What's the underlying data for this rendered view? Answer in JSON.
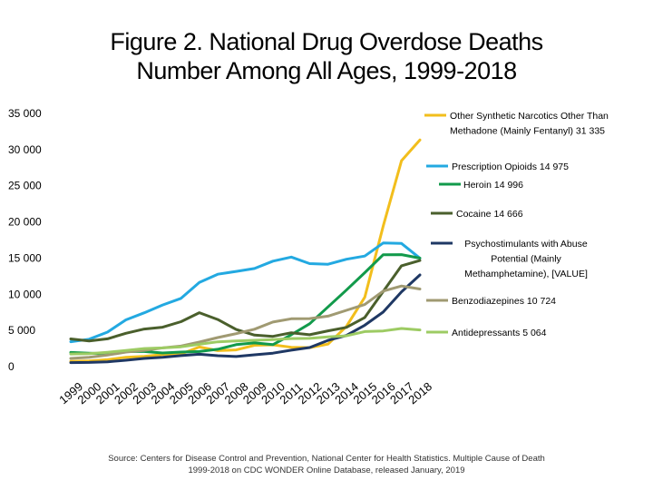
{
  "title_line1": "Figure 2. National Drug Overdose Deaths",
  "title_line2": "Number Among All Ages, 1999-2018",
  "source_line1": "Source: Centers for Disease Control and Prevention, National Center for Health Statistics. Multiple Cause of Death",
  "source_line2": "1999-2018 on CDC WONDER Online Database, released January, 2019",
  "chart_data": {
    "type": "line",
    "title": "Figure 2. National Drug Overdose Deaths Number Among All Ages, 1999-2018",
    "xlabel": "",
    "ylabel": "",
    "ylim": [
      0,
      35000
    ],
    "yticks": [
      0,
      5000,
      10000,
      15000,
      20000,
      25000,
      30000,
      35000
    ],
    "ytick_labels": [
      "0",
      "5 000",
      "10 000",
      "15 000",
      "20 000",
      "25 000",
      "30 000",
      "35 000"
    ],
    "grid": false,
    "legend_position": "right",
    "x": [
      "1999",
      "2000",
      "2001",
      "2002",
      "2003",
      "2004",
      "2005",
      "2006",
      "2007",
      "2008",
      "2009",
      "2010",
      "2011",
      "2012",
      "2013",
      "2014",
      "2015",
      "2016",
      "2017",
      "2018"
    ],
    "series": [
      {
        "name_lines": [
          "Other Synthetic Narcotics Other Than",
          "Methadone (Mainly Fentanyl)  31 335"
        ],
        "color": "#F2BE1C",
        "values": [
          730,
          782,
          957,
          1295,
          1400,
          1664,
          1742,
          2707,
          2213,
          2306,
          2946,
          3007,
          2666,
          2628,
          3105,
          5544,
          9580,
          19413,
          28466,
          31335
        ]
      },
      {
        "name_lines": [
          "Prescription Opioids  14 975"
        ],
        "color": "#23A9E1",
        "values": [
          3442,
          3785,
          4770,
          6459,
          7433,
          8515,
          9439,
          11626,
          12773,
          13157,
          13559,
          14583,
          15140,
          14240,
          14145,
          14838,
          15281,
          17087,
          17029,
          14975
        ]
      },
      {
        "name_lines": [
          "Heroin  14 996"
        ],
        "color": "#129A4B",
        "values": [
          1960,
          1842,
          1779,
          2089,
          2080,
          1878,
          2009,
          2088,
          2399,
          3041,
          3278,
          3036,
          4397,
          5925,
          8257,
          10574,
          12989,
          15469,
          15482,
          14996
        ]
      },
      {
        "name_lines": [
          "Cocaine  14 666"
        ],
        "color": "#4A5F2C",
        "values": [
          3822,
          3544,
          3833,
          4599,
          5199,
          5443,
          6208,
          7448,
          6512,
          5129,
          4350,
          4183,
          4681,
          4404,
          4944,
          5415,
          6784,
          10375,
          13942,
          14666
        ]
      },
      {
        "name_lines": [
          "Psychostimulants with Abuse",
          "Potential (Mainly",
          "Methamphetamine), [VALUE]"
        ],
        "color": "#1F3864",
        "values": [
          547,
          578,
          662,
          875,
          1131,
          1297,
          1513,
          1703,
          1502,
          1391,
          1632,
          1854,
          2266,
          2635,
          3627,
          4298,
          5716,
          7542,
          10333,
          12676
        ]
      },
      {
        "name_lines": [
          "Benzodiazepines  10 724"
        ],
        "color": "#A09A72",
        "values": [
          1135,
          1298,
          1594,
          2004,
          2248,
          2585,
          2830,
          3386,
          4012,
          4560,
          5172,
          6164,
          6617,
          6636,
          6973,
          7777,
          8577,
          10438,
          11143,
          10724
        ]
      },
      {
        "name_lines": [
          "Antidepressants  5 064"
        ],
        "color": "#9DCB63",
        "values": [
          1749,
          1779,
          1978,
          2238,
          2498,
          2587,
          2734,
          3090,
          3421,
          3556,
          3643,
          3735,
          3879,
          3907,
          4097,
          4252,
          4846,
          4930,
          5269,
          5064
        ]
      }
    ]
  }
}
